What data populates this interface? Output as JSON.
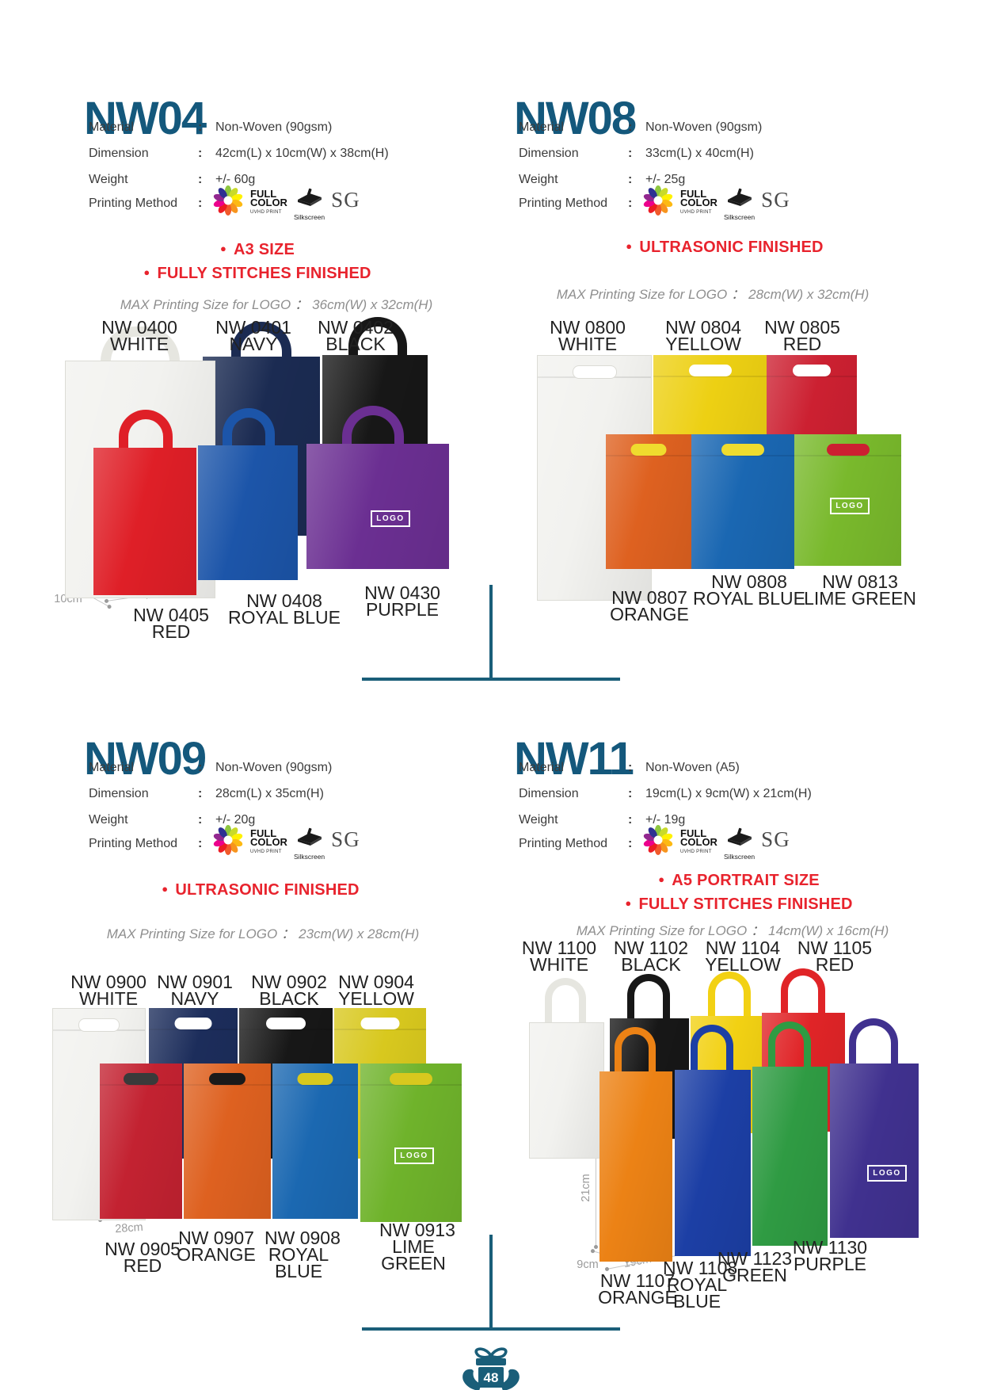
{
  "ui": {
    "colon": ":",
    "wide_colon": "：",
    "bullet": "●"
  },
  "page_number": "48",
  "logo_box_text": "LOGO",
  "max_label": "MAX Printing Size for LOGO",
  "spec_labels": {
    "material": "Material",
    "dimension": "Dimension",
    "weight": "Weight",
    "printing": "Printing Method"
  },
  "printing_icons": {
    "full_color_1": "FULL",
    "full_color_2": "COLOR",
    "full_color_sub": "UVHD PRINT",
    "silkscreen_label": "Silkscreen",
    "sg_label": "SG"
  },
  "colors": {
    "heading_teal": "#14587C",
    "divider_teal": "#1A5E79",
    "feature_red": "#E8232D"
  },
  "sections": [
    {
      "id": "NW04",
      "title": "NW04",
      "material": "Non-Woven (90gsm)",
      "dimension": "42cm(L) x 10cm(W) x 38cm(H)",
      "weight": "+/- 60g",
      "features": [
        "A3 SIZE",
        "FULLY STITCHES FINISHED"
      ],
      "max_printing_size": "36cm(W) x 32cm(H)",
      "dims": {
        "height": "38cm",
        "depth": "10cm",
        "length": "42cm"
      },
      "bags": [
        {
          "code": "NW 0400",
          "color": "WHITE",
          "hex": "#F2F2EF"
        },
        {
          "code": "NW 0401",
          "color": "NAVY",
          "hex": "#1B2B52"
        },
        {
          "code": "NW 0402",
          "color": "BLACK",
          "hex": "#171717"
        },
        {
          "code": "NW 0405",
          "color": "RED",
          "hex": "#DF1F27"
        },
        {
          "code": "NW 0408",
          "color": "ROYAL BLUE",
          "hex": "#1C55A9"
        },
        {
          "code": "NW 0430",
          "color": "PURPLE",
          "hex": "#6B2F92",
          "logo": true
        }
      ]
    },
    {
      "id": "NW08",
      "title": "NW08",
      "material": "Non-Woven (90gsm)",
      "dimension": "33cm(L) x 40cm(H)",
      "weight": "+/- 25g",
      "features": [
        "ULTRASONIC FINISHED"
      ],
      "max_printing_size": "28cm(W) x 32cm(H)",
      "dims": {
        "height": "40cm",
        "length": "33cm"
      },
      "bags": [
        {
          "code": "NW 0800",
          "color": "WHITE",
          "hex": "#F2F2EF",
          "hole": "#FFFFFF"
        },
        {
          "code": "NW 0804",
          "color": "YELLOW",
          "hex": "#EDD013",
          "hole": "#FFFFFF"
        },
        {
          "code": "NW 0805",
          "color": "RED",
          "hex": "#CC2031",
          "hole": "#FFFFFF"
        },
        {
          "code": "NW 0807",
          "color": "ORANGE",
          "hex": "#DE6120",
          "hole": "#EFDC2E"
        },
        {
          "code": "NW 0808",
          "color": "ROYAL BLUE",
          "hex": "#1A67B2",
          "hole": "#EFDC2E"
        },
        {
          "code": "NW 0813",
          "color": "LIME GREEN",
          "hex": "#79B92C",
          "hole": "#CC2031",
          "logo": true
        }
      ]
    },
    {
      "id": "NW09",
      "title": "NW09",
      "material": "Non-Woven (90gsm)",
      "dimension": "28cm(L) x 35cm(H)",
      "weight": "+/- 20g",
      "features": [
        "ULTRASONIC FINISHED"
      ],
      "max_printing_size": "23cm(W) x 28cm(H)",
      "dims": {
        "height": "35cm",
        "length": "28cm"
      },
      "bags": [
        {
          "code": "NW 0900",
          "color": "WHITE",
          "hex": "#F2F2EF",
          "hole": "#FFFFFF"
        },
        {
          "code": "NW 0901",
          "color": "NAVY",
          "hex": "#1C2D5B",
          "hole": "#FFFFFF"
        },
        {
          "code": "NW 0902",
          "color": "BLACK",
          "hex": "#171717",
          "hole": "#FFFFFF"
        },
        {
          "code": "NW 0904",
          "color": "YELLOW",
          "hex": "#D8C81E",
          "hole": "#FFFFFF"
        },
        {
          "code": "NW 0905",
          "color": "RED",
          "hex": "#C32231",
          "hole": "#3A3A3A"
        },
        {
          "code": "NW 0907",
          "color": "ORANGE",
          "hex": "#DE6120",
          "hole": "#1A1A1A"
        },
        {
          "code": "NW 0908",
          "color": "ROYAL BLUE",
          "hex": "#1B68B1",
          "hole": "#D8C81E"
        },
        {
          "code": "NW 0913",
          "color": "LIME GREEN",
          "hex": "#6FB32B",
          "hole": "#D8C81E",
          "logo": true
        }
      ]
    },
    {
      "id": "NW11",
      "title": "NW11",
      "material": "Non-Woven (A5)",
      "dimension": "19cm(L) x 9cm(W) x 21cm(H)",
      "weight": "+/- 19g",
      "features": [
        "A5 PORTRAIT SIZE",
        "FULLY STITCHES FINISHED"
      ],
      "max_printing_size": "14cm(W) x 16cm(H)",
      "dims": {
        "height": "21cm",
        "depth": "9cm",
        "length": "19cm"
      },
      "bags": [
        {
          "code": "NW 1100",
          "color": "WHITE",
          "hex": "#F2F2EF"
        },
        {
          "code": "NW 1102",
          "color": "BLACK",
          "hex": "#171717"
        },
        {
          "code": "NW 1104",
          "color": "YELLOW",
          "hex": "#F2D113"
        },
        {
          "code": "NW 1105",
          "color": "RED",
          "hex": "#E02427"
        },
        {
          "code": "NW 1107",
          "color": "ORANGE",
          "hex": "#EC8215"
        },
        {
          "code": "NW 1108",
          "color": "ROYAL BLUE",
          "hex": "#1C3FA5"
        },
        {
          "code": "NW 1123",
          "color": "GREEN",
          "hex": "#2F9B43"
        },
        {
          "code": "NW 1130",
          "color": "PURPLE",
          "hex": "#40318F",
          "logo": true
        }
      ]
    }
  ]
}
